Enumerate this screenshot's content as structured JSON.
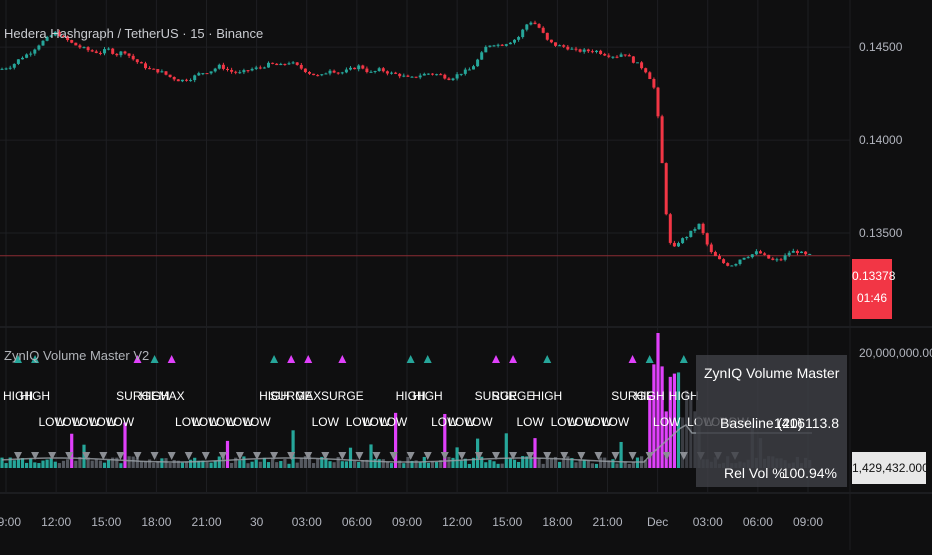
{
  "chart_title": "Hedera Hashgraph / TetherUS · 15 · Binance",
  "indicator_title": "ZynIQ Volume Master V2",
  "panel": {
    "title": "ZynIQ Volume Master",
    "baseline_label": "Baseline (20)",
    "baseline_value": "1416113.8",
    "relvol_label": "Rel Vol %",
    "relvol_value": "100.94%"
  },
  "price_tag": {
    "price": "0.13378",
    "countdown": "01:46"
  },
  "volume_tag": "1,429,432.00000",
  "colors": {
    "up": "#26a69a",
    "down": "#f23645",
    "surge": "#e040fb",
    "grid": "#1e1f22"
  },
  "chart_data": [
    {
      "type": "candlestick",
      "x_ticks": [
        "09:00",
        "12:00",
        "15:00",
        "18:00",
        "21:00",
        "30",
        "03:00",
        "06:00",
        "09:00",
        "12:00",
        "15:00",
        "18:00",
        "21:00",
        "Dec",
        "03:00",
        "06:00",
        "09:00"
      ],
      "y_ticks": [
        "0.14500",
        "0.14000",
        "0.13500"
      ],
      "ylim": [
        0.13,
        0.147
      ],
      "last_price": 0.13378,
      "close_path": [
        [
          0,
          0.1438
        ],
        [
          12,
          0.144
        ],
        [
          20,
          0.1444
        ],
        [
          30,
          0.1447
        ],
        [
          40,
          0.1452
        ],
        [
          48,
          0.1455
        ],
        [
          56,
          0.1458
        ],
        [
          64,
          0.1455
        ],
        [
          72,
          0.1452
        ],
        [
          80,
          0.145
        ],
        [
          90,
          0.1448
        ],
        [
          100,
          0.1447
        ],
        [
          108,
          0.1449
        ],
        [
          116,
          0.1446
        ],
        [
          124,
          0.1448
        ],
        [
          132,
          0.1444
        ],
        [
          140,
          0.1441
        ],
        [
          150,
          0.1438
        ],
        [
          160,
          0.1437
        ],
        [
          170,
          0.1434
        ],
        [
          180,
          0.1432
        ],
        [
          190,
          0.1433
        ],
        [
          200,
          0.1436
        ],
        [
          210,
          0.1437
        ],
        [
          220,
          0.144
        ],
        [
          230,
          0.1437
        ],
        [
          240,
          0.1436
        ],
        [
          250,
          0.1438
        ],
        [
          260,
          0.1439
        ],
        [
          270,
          0.1441
        ],
        [
          280,
          0.144
        ],
        [
          290,
          0.1442
        ],
        [
          300,
          0.1439
        ],
        [
          310,
          0.1436
        ],
        [
          320,
          0.1434
        ],
        [
          330,
          0.1438
        ],
        [
          340,
          0.1436
        ],
        [
          350,
          0.1438
        ],
        [
          360,
          0.144
        ],
        [
          370,
          0.1436
        ],
        [
          380,
          0.1438
        ],
        [
          390,
          0.1436
        ],
        [
          400,
          0.1435
        ],
        [
          410,
          0.1433
        ],
        [
          420,
          0.1435
        ],
        [
          430,
          0.1436
        ],
        [
          440,
          0.1435
        ],
        [
          450,
          0.1433
        ],
        [
          460,
          0.1436
        ],
        [
          470,
          0.1438
        ],
        [
          475,
          0.1441
        ],
        [
          480,
          0.1445
        ],
        [
          486,
          0.145
        ],
        [
          492,
          0.1452
        ],
        [
          500,
          0.1451
        ],
        [
          510,
          0.1453
        ],
        [
          518,
          0.1455
        ],
        [
          526,
          0.1462
        ],
        [
          532,
          0.1464
        ],
        [
          540,
          0.146
        ],
        [
          548,
          0.1453
        ],
        [
          556,
          0.1451
        ],
        [
          566,
          0.145
        ],
        [
          576,
          0.1448
        ],
        [
          586,
          0.1448
        ],
        [
          596,
          0.1448
        ],
        [
          606,
          0.1446
        ],
        [
          616,
          0.1445
        ],
        [
          624,
          0.1447
        ],
        [
          632,
          0.1443
        ],
        [
          640,
          0.144
        ],
        [
          648,
          0.1436
        ],
        [
          654,
          0.1428
        ],
        [
          658,
          0.1412
        ],
        [
          662,
          0.1388
        ],
        [
          665,
          0.1368
        ],
        [
          668,
          0.135
        ],
        [
          672,
          0.134
        ],
        [
          678,
          0.1345
        ],
        [
          686,
          0.1348
        ],
        [
          694,
          0.1352
        ],
        [
          700,
          0.1355
        ],
        [
          704,
          0.1348
        ],
        [
          710,
          0.134
        ],
        [
          718,
          0.1336
        ],
        [
          726,
          0.1333
        ],
        [
          734,
          0.1333
        ],
        [
          742,
          0.1337
        ],
        [
          750,
          0.1338
        ],
        [
          758,
          0.134
        ],
        [
          766,
          0.1337
        ],
        [
          774,
          0.1335
        ],
        [
          782,
          0.1336
        ],
        [
          790,
          0.134
        ],
        [
          798,
          0.134
        ],
        [
          806,
          0.1338
        ],
        [
          812,
          0.1338
        ]
      ]
    },
    {
      "type": "bar",
      "y_tick": "20,000,000.00000",
      "signals": [
        {
          "label": "HIGH",
          "level": 0
        },
        {
          "label": "HIGH",
          "level": 0
        },
        {
          "label": "LOW",
          "level": 1
        },
        {
          "label": "LOW",
          "level": 1
        },
        {
          "label": "LOW",
          "level": 1
        },
        {
          "label": "LOW",
          "level": 1
        },
        {
          "label": "LOW",
          "level": 1
        },
        {
          "label": "SURGE",
          "level": 0
        },
        {
          "label": "HIGH",
          "level": 0
        },
        {
          "label": "MAX",
          "level": 0
        },
        {
          "label": "LOW",
          "level": 1
        },
        {
          "label": "LOW",
          "level": 1
        },
        {
          "label": "LOW",
          "level": 1
        },
        {
          "label": "LOW",
          "level": 1
        },
        {
          "label": "LOW",
          "level": 1
        },
        {
          "label": "HIGH",
          "level": 0
        },
        {
          "label": "SURGE",
          "level": 0
        },
        {
          "label": "MAX",
          "level": 0
        },
        {
          "label": "LOW",
          "level": 1
        },
        {
          "label": "SURGE",
          "level": 0
        },
        {
          "label": "LOW",
          "level": 1
        },
        {
          "label": "LOW",
          "level": 1
        },
        {
          "label": "LOW",
          "level": 1
        },
        {
          "label": "HIGH",
          "level": 0
        },
        {
          "label": "HIGH",
          "level": 0
        },
        {
          "label": "LOW",
          "level": 1
        },
        {
          "label": "LOW",
          "level": 1
        },
        {
          "label": "LOW",
          "level": 1
        },
        {
          "label": "SURGE",
          "level": 0
        },
        {
          "label": "SURGE",
          "level": 0
        },
        {
          "label": "LOW",
          "level": 1
        },
        {
          "label": "HIGH",
          "level": 0
        },
        {
          "label": "LOW",
          "level": 1
        },
        {
          "label": "LOW",
          "level": 1
        },
        {
          "label": "LOW",
          "level": 1
        },
        {
          "label": "LOW",
          "level": 1
        },
        {
          "label": "SURGE",
          "level": 0
        },
        {
          "label": "HIGH",
          "level": 0
        },
        {
          "label": "LOW",
          "level": 1
        },
        {
          "label": "HIGH",
          "level": 0
        },
        {
          "label": "LOW",
          "level": 1
        },
        {
          "label": "LOW",
          "level": 1
        },
        {
          "label": "LOW",
          "level": 1
        }
      ]
    }
  ]
}
